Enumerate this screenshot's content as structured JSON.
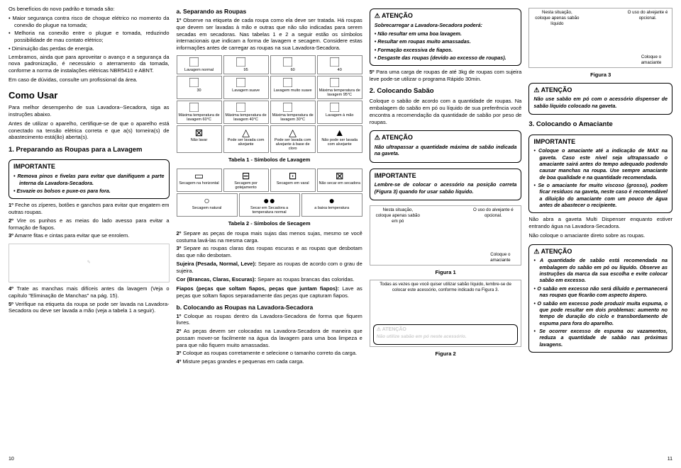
{
  "col1": {
    "intro": "Os benefícios do novo padrão e tomada são:",
    "benefits": [
      "Maior segurança contra risco de choque elétrico no momento da conexão do plugue na tomada;",
      "Melhoria na conexão entre o plugue e tomada, reduzindo possibilidade de mau contato elétrico;",
      "Diminuição das perdas de energia."
    ],
    "p1": "Lembramos, ainda que para aproveitar o avanço e a segurança da nova padronização, é necessário o aterramento da tomada, conforme a norma de instalações elétricas NBR5410 e ABNT.",
    "p2": "Em caso de dúvidas, consulte um profissional da área.",
    "h_como": "Como Usar",
    "p3": "Para melhor desempenho de sua Lavadora--Secadora, siga as instruções abaixo.",
    "p4": "Antes de utilizar o aparelho, certifique-se de que o aparelho está conectado na tensão elétrica correta e que a(s) torneira(s) de abastecimento está(ão) aberta(s).",
    "h_prep": "1. Preparando as Roupas para a Lavagem",
    "imp_title": "IMPORTANTE",
    "imp_items": [
      "Remova pinos e fivelas para evitar que danifiquem a parte interna da Lavadora-Secadora.",
      "Esvazie os bolsos e puxe-os para fora."
    ],
    "s1n": "1º",
    "s1": "Feche os zíperes, botões e ganchos para evitar que engatem em outras roupas.",
    "s2n": "2º",
    "s2": "Vire os punhos e as meias do lado avesso para evitar a formação de fiapos.",
    "s3n": "3º",
    "s3": "Amarre fitas e cintas para evitar que se enrolem.",
    "s4n": "4º",
    "s4": "Trate as manchas mais difíceis antes da lavagem (Veja o capítulo \"Eliminação de Manchas\" na pág. 15).",
    "s5n": "5º",
    "s5": "Verifique na etiqueta da roupa se pode ser lavada na Lavadora-Secadora ou deve ser lavada a mão (veja a tabela 1 a seguir).",
    "page": "10"
  },
  "col2": {
    "h_a": "a. Separando as Roupas",
    "a1n": "1º",
    "a1": "Observe na etiqueta de cada roupa como ela deve ser tratada. Há roupas que devem ser lavadas à mão e outras que não são indicadas para serem secadas em secadoras. Nas tabelas 1 e 2 a seguir estão os símbolos internacionais que indicam a forma de lavagem e secagem. Considere estas informações antes de carregar as roupas na sua Lavadora-Secadora.",
    "symLav": [
      {
        "ico": "⃞",
        "lbl": "Lavagem normal"
      },
      {
        "ico": "⃞",
        "lbl": "95"
      },
      {
        "ico": "⃞",
        "lbl": "60"
      },
      {
        "ico": "⃞",
        "lbl": "40"
      },
      {
        "ico": "⃞",
        "lbl": "30"
      },
      {
        "ico": "⃞",
        "lbl": "Lavagem suave"
      },
      {
        "ico": "⃞",
        "lbl": "Lavagem muito suave"
      },
      {
        "ico": "⃞",
        "lbl": "Máxima temperatura de lavagem 95°C"
      },
      {
        "ico": "⃞",
        "lbl": "Máxima temperatura de lavagem 60°C"
      },
      {
        "ico": "⃞",
        "lbl": "Máxima temperatura de lavagem 40°C"
      },
      {
        "ico": "⃞",
        "lbl": "Máxima temperatura de lavagem 30°C"
      },
      {
        "ico": "⃞",
        "lbl": "Lavagem à mão"
      },
      {
        "ico": "⊠",
        "lbl": "Não lavar"
      },
      {
        "ico": "△",
        "lbl": "Pode ser lavada com alvejante"
      },
      {
        "ico": "△",
        "lbl": "Pode ser lavada com alvejante à base de cloro"
      },
      {
        "ico": "▲",
        "lbl": "Não pode ser lavada com alvejante"
      }
    ],
    "tcap1": "Tabela 1 - Símbolos de Lavagem",
    "symSec": [
      {
        "ico": "▭",
        "lbl": "Secagem na horizontal"
      },
      {
        "ico": "⊟",
        "lbl": "Secagem por gotejamento"
      },
      {
        "ico": "⊡",
        "lbl": "Secagem em varal"
      },
      {
        "ico": "⊠",
        "lbl": "Não secar em secadora"
      },
      {
        "ico": "○",
        "lbl": "Secagem natural"
      },
      {
        "ico": "●●",
        "lbl": "Secar em Secadora a temperatura normal"
      },
      {
        "ico": "●",
        "lbl": "a baixa temperatura"
      }
    ],
    "tcap2": "Tabela 2 - Símbolos de Secagem",
    "a2n": "2º",
    "a2": "Separe as peças de roupa mais sujas das menos sujas, mesmo se você costuma lavá-las na mesma carga.",
    "a3n": "3º",
    "a3": "Separe as roupas claras das roupas escuras e as roupas que desbotam das que não desbotam.",
    "suj_t": "Sujeira (Pesada, Normal, Leve): ",
    "suj": "Separe as roupas de acordo com o grau de sujeira.",
    "cor_t": "Cor (Brancas, Claras, Escuras): ",
    "cor": "Separe as roupas brancas das coloridas.",
    "fia_t": "Fiapos (peças que soltam fiapos, peças que juntam fiapos): ",
    "fia": "Lave as peças que soltam fiapos separadamente das peças que capturam fiapos.",
    "h_b": "b. Colocando as Roupas na Lavadora-Secadora",
    "b1n": "1º",
    "b1": "Coloque as roupas dentro da Lavadora-Secadora de forma que fiquem livres.",
    "b2n": "2º",
    "b2": "As peças devem ser colocadas na Lavadora-Secadora de maneira que possam mover-se facilmente na água da lavagem para uma boa limpeza e para que não fiquem muito amassadas.",
    "b3n": "3º",
    "b3": "Coloque as roupas corretamente e selecione o tamanho correto da carga.",
    "b4n": "4º",
    "b4": "Misture peças grandes e pequenas em cada carga."
  },
  "col3": {
    "at1_title": "ATENÇÃO",
    "at1_intro": "Sobrecarregar a Lavadora-Secadora poderá:",
    "at1_items": [
      "Não resultar em uma boa lavagem.",
      "Resultar em roupas muito amassadas.",
      "Formação excessiva de fiapos.",
      "Desgaste das roupas (devido ao excesso de roupas)."
    ],
    "b5n": "5º",
    "b5": "Para uma carga de roupas de até 3kg de roupas com sujeira leve pode-se utilizar o programa Rápido 30min.",
    "h_sab": "2. Colocando Sabão",
    "p_sab": "Coloque o sabão de acordo com a quantidade de roupas. Na embalagem do sabão em pó ou líquido de sua preferência você encontra a recomendação da quantidade de sabão por peso de roupas.",
    "at2_title": "ATENÇÃO",
    "at2": "Não ultrapassar a quantidade máxima de sabão indicada na gaveta.",
    "imp2_title": "IMPORTANTE",
    "imp2": "Lembre-se de colocar o acessório na posição correta (Figura 3) quando for usar sabão líquido.",
    "fig1_l1": "Nesta situação,",
    "fig1_l2": "coloque apenas sabão",
    "fig1_l3": "em pó",
    "fig1_r1": "O uso do alvejante é",
    "fig1_r2": "opcional.",
    "fig1_b": "Coloque o",
    "fig1_b2": "amaciante",
    "fig1": "Figura 1",
    "fig2_txt": "Todas as vezes que você quiser utilizar sabão líquido, lembre-se de colocar este acessório, conforme indicado na Figura 3.",
    "at3_title": "ATENÇÃO",
    "at3": "Não utilize sabão em pó neste acessório.",
    "fig2": "Figura 2"
  },
  "col4": {
    "fig3_l1": "Nesta situação,",
    "fig3_l2": "coloque apenas sabão",
    "fig3_l3": "líquido",
    "fig3_r1": "O uso do alvejante é",
    "fig3_r2": "opcional.",
    "fig3_b": "Coloque o",
    "fig3_b2": "amaciante",
    "fig3": "Figura 3",
    "at4_title": "ATENÇÃO",
    "at4": "Não use sabão em pó com o acessório dispenser de sabão líquido colocado na gaveta.",
    "h_ama": "3. Colocando o Amaciante",
    "imp3_title": "IMPORTANTE",
    "imp3_items": [
      "Coloque o amaciante até a indicação de MAX na gaveta. Caso este nível seja ultrapassado o amaciante sairá antes do tempo adequado podendo causar manchas na roupa. Use sempre amaciante de boa qualidade e na quantidade recomendada.",
      "Se o amaciante for muito viscoso (grosso), podem ficar resíduos na gaveta, neste caso é recomendável a diluição do amaciante com um pouco de água antes de abastecer o recipiente."
    ],
    "p_ama1": "Não abra a gaveta Multi Dispenser enquanto estiver entrando água na Lavadora-Secadora.",
    "p_ama2": "Não coloque o amaciante direto sobre as roupas.",
    "at5_title": "ATENÇÃO",
    "at5_items": [
      "A quantidade de sabão está recomendada na embalagem do sabão em pó ou líquido. Observe as instruções da marca da sua escolha e evite colocar sabão em excesso.",
      "O sabão em excesso não será diluído e permanecerá nas roupas que ficarão com aspecto áspero.",
      "O sabão em excesso pode produzir muita espuma, o que pode resultar em dois problemas: aumento no tempo de duração do ciclo e transbordamento de espuma para fora do aparelho.",
      "Se ocorrer excesso de espuma ou vazamentos, reduza a quantidade de sabão nas próximas lavagens."
    ],
    "page": "11"
  }
}
